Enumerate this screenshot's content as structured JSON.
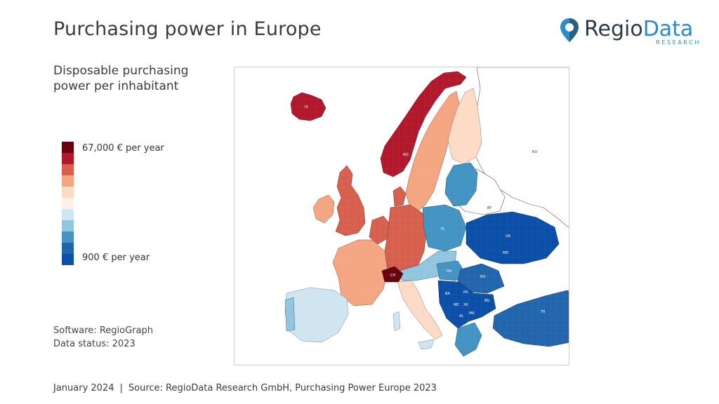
{
  "header": {
    "title": "Purchasing power in Europe",
    "logo": {
      "word_a": "Regio",
      "word_b": "Data",
      "sub": "RESEARCH",
      "icon": "map-pin-icon"
    }
  },
  "legend": {
    "title": "Disposable purchasing power per inhabitant",
    "max_label": "67,000 € per year",
    "min_label": "900 € per year",
    "colors": [
      "#67000d",
      "#b2182b",
      "#d6604d",
      "#f4a582",
      "#fddbc7",
      "#fdf1ea",
      "#d1e5f0",
      "#92c5de",
      "#4393c3",
      "#2166ac",
      "#0b4fa8"
    ]
  },
  "meta": {
    "software": "Software: RegioGraph",
    "data_status": "Data status: 2023"
  },
  "footer": {
    "date": "January 2024",
    "separator": "|",
    "source": "Source: RegioData Research GmbH, Purchasing Power Europe 2023"
  },
  "map": {
    "country_labels": [
      {
        "code": "IS",
        "color": "#b2182b"
      },
      {
        "code": "NO",
        "color": "#b2182b"
      },
      {
        "code": "RU",
        "color": "#ffffff"
      },
      {
        "code": "BY",
        "color": "#ffffff"
      },
      {
        "code": "UA",
        "color": "#0b4fa8"
      },
      {
        "code": "MD",
        "color": "#0b4fa8"
      },
      {
        "code": "RO",
        "color": "#2166ac"
      },
      {
        "code": "CH",
        "color": "#67000d"
      },
      {
        "code": "RS",
        "color": "#0b4fa8"
      },
      {
        "code": "BG",
        "color": "#0b4fa8"
      },
      {
        "code": "BA",
        "color": "#0b4fa8"
      },
      {
        "code": "ME",
        "color": "#0b4fa8"
      },
      {
        "code": "XK",
        "color": "#0b4fa8"
      },
      {
        "code": "MK",
        "color": "#0b4fa8"
      },
      {
        "code": "AL",
        "color": "#0b4fa8"
      },
      {
        "code": "TR",
        "color": "#2166ac"
      },
      {
        "code": "HU",
        "color": "#4393c3"
      },
      {
        "code": "PL",
        "color": "#4393c3"
      }
    ]
  }
}
